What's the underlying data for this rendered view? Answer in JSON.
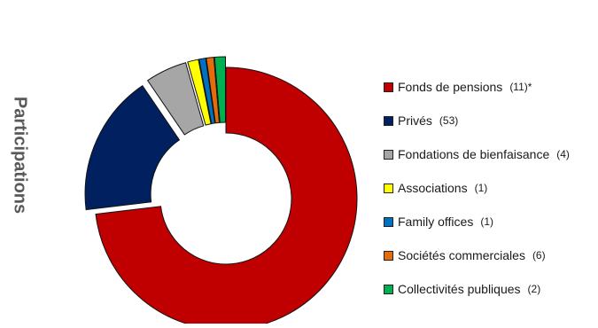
{
  "chart_data": {
    "type": "pie",
    "style": "exploded-donut",
    "ylabel": "Participations",
    "slices": [
      {
        "label": "Fonds de pensions",
        "count_label": "(11)",
        "mark": "*",
        "value": 71.5,
        "color": "#c00000"
      },
      {
        "label": "Privés",
        "count_label": "(53)",
        "mark": "",
        "value": 17.0,
        "color": "#002060"
      },
      {
        "label": "Fondations de bienfaisance",
        "count_label": "(4)",
        "mark": "",
        "value": 5.0,
        "color": "#a6a6a6"
      },
      {
        "label": "Associations",
        "count_label": "(1)",
        "mark": "",
        "value": 1.3,
        "color": "#ffff00"
      },
      {
        "label": "Family offices",
        "count_label": "(1)",
        "mark": "",
        "value": 0.8,
        "color": "#0070c0"
      },
      {
        "label": "Sociétés commerciales",
        "count_label": "(6)",
        "mark": "",
        "value": 0.9,
        "color": "#e46c0a"
      },
      {
        "label": "Collectivités publiques",
        "count_label": "(2)",
        "mark": "",
        "value": 1.3,
        "color": "#00b050"
      }
    ],
    "legend_position": "right"
  }
}
